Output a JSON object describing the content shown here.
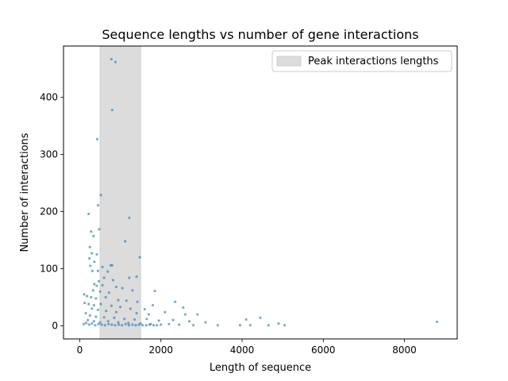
{
  "chart_data": {
    "type": "scatter",
    "title": "Sequence lengths vs number of gene interactions",
    "xlabel": "Length of sequence",
    "ylabel": "Number of interactions",
    "xlim": [
      -400,
      9300
    ],
    "ylim": [
      -23,
      490
    ],
    "xticks": [
      0,
      2000,
      4000,
      6000,
      8000
    ],
    "xtick_labels": [
      "0",
      "2000",
      "4000",
      "6000",
      "8000"
    ],
    "yticks": [
      0,
      100,
      200,
      300,
      400
    ],
    "ytick_labels": [
      "0",
      "100",
      "200",
      "300",
      "400"
    ],
    "grid": false,
    "legend_position": "top-right",
    "shaded_region": {
      "label": "Peak interactions lengths",
      "x_range": [
        500,
        1500
      ],
      "color": "#dcdcdc"
    },
    "point_color": "#1f77b4",
    "series": [
      {
        "points": [
          [
            780,
            467
          ],
          [
            880,
            462
          ],
          [
            800,
            378
          ],
          [
            430,
            327
          ],
          [
            520,
            229
          ],
          [
            450,
            211
          ],
          [
            220,
            196
          ],
          [
            1220,
            189
          ],
          [
            480,
            169
          ],
          [
            280,
            165
          ],
          [
            340,
            157
          ],
          [
            1120,
            148
          ],
          [
            250,
            138
          ],
          [
            300,
            127
          ],
          [
            420,
            125
          ],
          [
            240,
            118
          ],
          [
            1480,
            120
          ],
          [
            360,
            112
          ],
          [
            260,
            105
          ],
          [
            760,
            106
          ],
          [
            800,
            106
          ],
          [
            560,
            103
          ],
          [
            690,
            95
          ],
          [
            450,
            96
          ],
          [
            310,
            96
          ],
          [
            1220,
            84
          ],
          [
            1400,
            86
          ],
          [
            600,
            84
          ],
          [
            820,
            80
          ],
          [
            470,
            78
          ],
          [
            360,
            73
          ],
          [
            420,
            70
          ],
          [
            560,
            71
          ],
          [
            900,
            68
          ],
          [
            1050,
            66
          ],
          [
            1300,
            62
          ],
          [
            1850,
            61
          ],
          [
            330,
            62
          ],
          [
            500,
            60
          ],
          [
            720,
            58
          ],
          [
            110,
            55
          ],
          [
            180,
            52
          ],
          [
            280,
            50
          ],
          [
            400,
            48
          ],
          [
            640,
            50
          ],
          [
            950,
            45
          ],
          [
            1150,
            44
          ],
          [
            1420,
            42
          ],
          [
            2350,
            42
          ],
          [
            120,
            40
          ],
          [
            220,
            38
          ],
          [
            350,
            36
          ],
          [
            520,
            38
          ],
          [
            780,
            35
          ],
          [
            1000,
            33
          ],
          [
            1250,
            30
          ],
          [
            1600,
            29
          ],
          [
            1800,
            36
          ],
          [
            2550,
            32
          ],
          [
            300,
            30
          ],
          [
            450,
            28
          ],
          [
            650,
            26
          ],
          [
            900,
            24
          ],
          [
            1400,
            22
          ],
          [
            1700,
            20
          ],
          [
            2100,
            24
          ],
          [
            2600,
            20
          ],
          [
            2900,
            20
          ],
          [
            150,
            22
          ],
          [
            250,
            18
          ],
          [
            400,
            16
          ],
          [
            600,
            15
          ],
          [
            850,
            14
          ],
          [
            1100,
            12
          ],
          [
            1350,
            11
          ],
          [
            1650,
            12
          ],
          [
            1950,
            9
          ],
          [
            2300,
            10
          ],
          [
            2700,
            8
          ],
          [
            3100,
            6
          ],
          [
            4100,
            11
          ],
          [
            4450,
            14
          ],
          [
            4900,
            4
          ],
          [
            200,
            10
          ],
          [
            350,
            8
          ],
          [
            500,
            6
          ],
          [
            700,
            8
          ],
          [
            950,
            6
          ],
          [
            1200,
            5
          ],
          [
            1500,
            4
          ],
          [
            1750,
            3
          ],
          [
            2000,
            2
          ],
          [
            2200,
            3
          ],
          [
            2450,
            2
          ],
          [
            2800,
            1
          ],
          [
            3400,
            1
          ],
          [
            3950,
            1
          ],
          [
            4200,
            1
          ],
          [
            4650,
            1
          ],
          [
            5050,
            1
          ],
          [
            100,
            3
          ],
          [
            160,
            5
          ],
          [
            230,
            2
          ],
          [
            300,
            4
          ],
          [
            380,
            1
          ],
          [
            460,
            3
          ],
          [
            540,
            2
          ],
          [
            620,
            1
          ],
          [
            710,
            3
          ],
          [
            790,
            2
          ],
          [
            870,
            1
          ],
          [
            960,
            2
          ],
          [
            1040,
            1
          ],
          [
            1130,
            3
          ],
          [
            1210,
            1
          ],
          [
            1300,
            2
          ],
          [
            1380,
            1
          ],
          [
            1460,
            2
          ],
          [
            1550,
            1
          ],
          [
            1640,
            1
          ],
          [
            1720,
            2
          ],
          [
            1820,
            1
          ],
          [
            1900,
            1
          ],
          [
            8800,
            7
          ]
        ]
      }
    ]
  }
}
